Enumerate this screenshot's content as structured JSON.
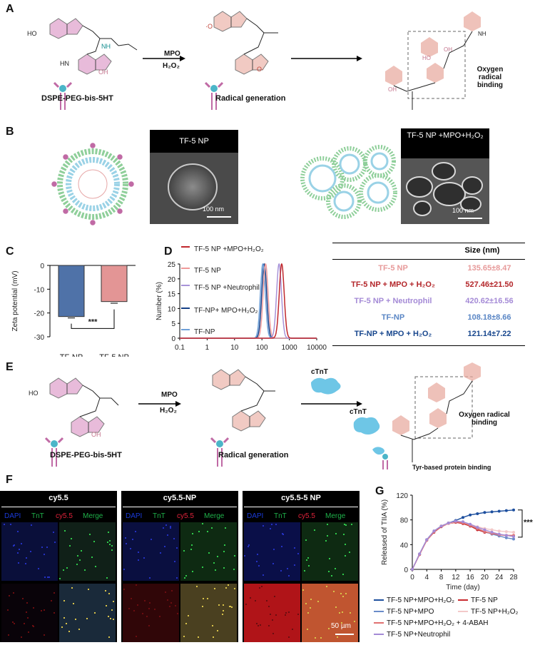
{
  "panels": {
    "A": {
      "letter": "A",
      "reagent": "MPO",
      "reagent2": "H₂O₂",
      "left_caption": "DSPE-PEG-bis-5HT",
      "mid_caption": "Radical generation",
      "right_caption": "Oxygen radical binding",
      "ho": "HO",
      "oh": "OH",
      "hn": "HN",
      "nh": "NH"
    },
    "B": {
      "letter": "B",
      "sem1_title": "TF-5 NP",
      "sem2_title": "TF-5 NP +MPO+H₂O₂",
      "scale": "100 nm"
    },
    "C": {
      "letter": "C",
      "ylabel": "Zeta potential (mV)",
      "significance": "***"
    },
    "D": {
      "letter": "D",
      "ylabel": "Number (%)"
    },
    "table": {
      "header": "Size (nm)",
      "rows": [
        {
          "name": "TF-5 NP",
          "value": "135.65±8.47",
          "color": "#e79a9a"
        },
        {
          "name": "TF-5 NP + MPO + H₂O₂",
          "value": "527.46±21.50",
          "color": "#b3262a"
        },
        {
          "name": "TF-5 NP + Neutrophil",
          "value": "420.62±16.56",
          "color": "#a48ad6"
        },
        {
          "name": "TF-NP",
          "value": "108.18±8.66",
          "color": "#5a86c5"
        },
        {
          "name": "TF-NP + MPO + H₂O₂",
          "value": "121.14±7.22",
          "color": "#17468d"
        }
      ]
    },
    "E": {
      "letter": "E",
      "reagent": "MPO",
      "reagent2": "H₂O₂",
      "left_caption": "DSPE-PEG-bis-5HT",
      "mid_caption": "Radical generation",
      "cTnT_top": "cTnT",
      "cTnT_left": "cTnT",
      "right_caption": "Oxygen radical binding",
      "tyr_caption": "Tyr-based protein binding"
    },
    "F": {
      "letter": "F",
      "groups": [
        {
          "title": "cy5.5",
          "channels": [
            "DAPI",
            "TnT",
            "cy5.5",
            "Merge"
          ]
        },
        {
          "title": "cy5.5-NP",
          "channels": [
            "DAPI",
            "TnT",
            "cy5.5",
            "Merge"
          ]
        },
        {
          "title": "cy5.5-5 NP",
          "channels": [
            "DAPI",
            "TnT",
            "cy5.5",
            "Merge"
          ]
        }
      ],
      "scale": "50 µm"
    },
    "G": {
      "letter": "G",
      "significance": "***",
      "legend": [
        "TF-5 NP+MPO+H₂O₂",
        "TF-5 NP",
        "TF-5 NP+MPO",
        "TF-5 NP+H₂O₂",
        "TF-5 NP+MPO+H₂O₂ + 4-ABAH",
        "TF-5 NP+Neutrophil"
      ]
    }
  },
  "chart_data": [
    {
      "type": "bar",
      "panel": "C",
      "categories": [
        "TF-NP",
        "TF-5 NP"
      ],
      "values": [
        -21.5,
        -15.2
      ],
      "errors": [
        0.6,
        0.7
      ],
      "colors": [
        "#4f72a8",
        "#e39595"
      ],
      "ylabel": "Zeta potential (mV)",
      "ylim": [
        -30,
        0
      ],
      "yticks": [
        0,
        -10,
        -20,
        -30
      ],
      "annotation": "***"
    },
    {
      "type": "line",
      "panel": "D",
      "xscale": "log",
      "xlim": [
        0.1,
        10000
      ],
      "ylim": [
        0,
        25
      ],
      "xticks": [
        "0.1",
        "1",
        "10",
        "100",
        "1000",
        "10000"
      ],
      "yticks": [
        0,
        5,
        10,
        15,
        20,
        25
      ],
      "ylabel": "Number (%)",
      "series": [
        {
          "name": "TF-5 NP +MPO+H₂O₂",
          "color": "#c0282d",
          "peak": 527,
          "height": 25
        },
        {
          "name": "TF-5 NP",
          "color": "#ef9a9a",
          "peak": 136,
          "height": 25
        },
        {
          "name": "TF-5 NP +Neutrophil",
          "color": "#a893d8",
          "peak": 421,
          "height": 25
        },
        {
          "name": "TF-NP+ MPO+H₂O₂",
          "color": "#153f86",
          "peak": 121,
          "height": 25
        },
        {
          "name": "TF-NP",
          "color": "#6ea0d8",
          "peak": 108,
          "height": 25
        }
      ]
    },
    {
      "type": "line",
      "panel": "G",
      "x": [
        0,
        2,
        4,
        6,
        8,
        10,
        12,
        14,
        16,
        18,
        20,
        22,
        24,
        26,
        28
      ],
      "xlabel": "Time (day)",
      "ylabel": "Released of TIIA (%)",
      "xticks": [
        0,
        4,
        8,
        12,
        16,
        20,
        24,
        28
      ],
      "yticks": [
        0,
        40,
        80,
        120
      ],
      "ylim": [
        0,
        120
      ],
      "series": [
        {
          "name": "TF-5 NP+MPO+H₂O₂",
          "color": "#1d4f9e",
          "values": [
            0,
            25,
            48,
            62,
            70,
            75,
            79,
            84,
            88,
            90,
            92,
            93,
            94,
            95,
            96
          ]
        },
        {
          "name": "TF-5 NP",
          "color": "#c92a2f",
          "values": [
            0,
            24,
            47,
            60,
            69,
            74,
            76,
            74,
            70,
            64,
            60,
            58,
            56,
            55,
            54
          ]
        },
        {
          "name": "TF-5 NP+MPO",
          "color": "#6a8cc9",
          "values": [
            0,
            25,
            48,
            61,
            70,
            75,
            77,
            76,
            71,
            66,
            61,
            57,
            54,
            51,
            49
          ]
        },
        {
          "name": "TF-5 NP+H₂O₂",
          "color": "#f3c9c9",
          "values": [
            0,
            25,
            47,
            61,
            70,
            74,
            77,
            76,
            73,
            69,
            66,
            64,
            62,
            61,
            60
          ]
        },
        {
          "name": "TF-5 NP+MPO+H₂O₂ + 4-ABAH",
          "color": "#e07070",
          "values": [
            0,
            24,
            47,
            61,
            70,
            75,
            77,
            75,
            71,
            66,
            61,
            58,
            56,
            55,
            55
          ]
        },
        {
          "name": "TF-5 NP+Neutrophil",
          "color": "#a48ad6",
          "values": [
            0,
            25,
            48,
            62,
            70,
            75,
            78,
            77,
            73,
            68,
            64,
            60,
            57,
            55,
            53
          ]
        }
      ],
      "annotation": "***"
    }
  ]
}
